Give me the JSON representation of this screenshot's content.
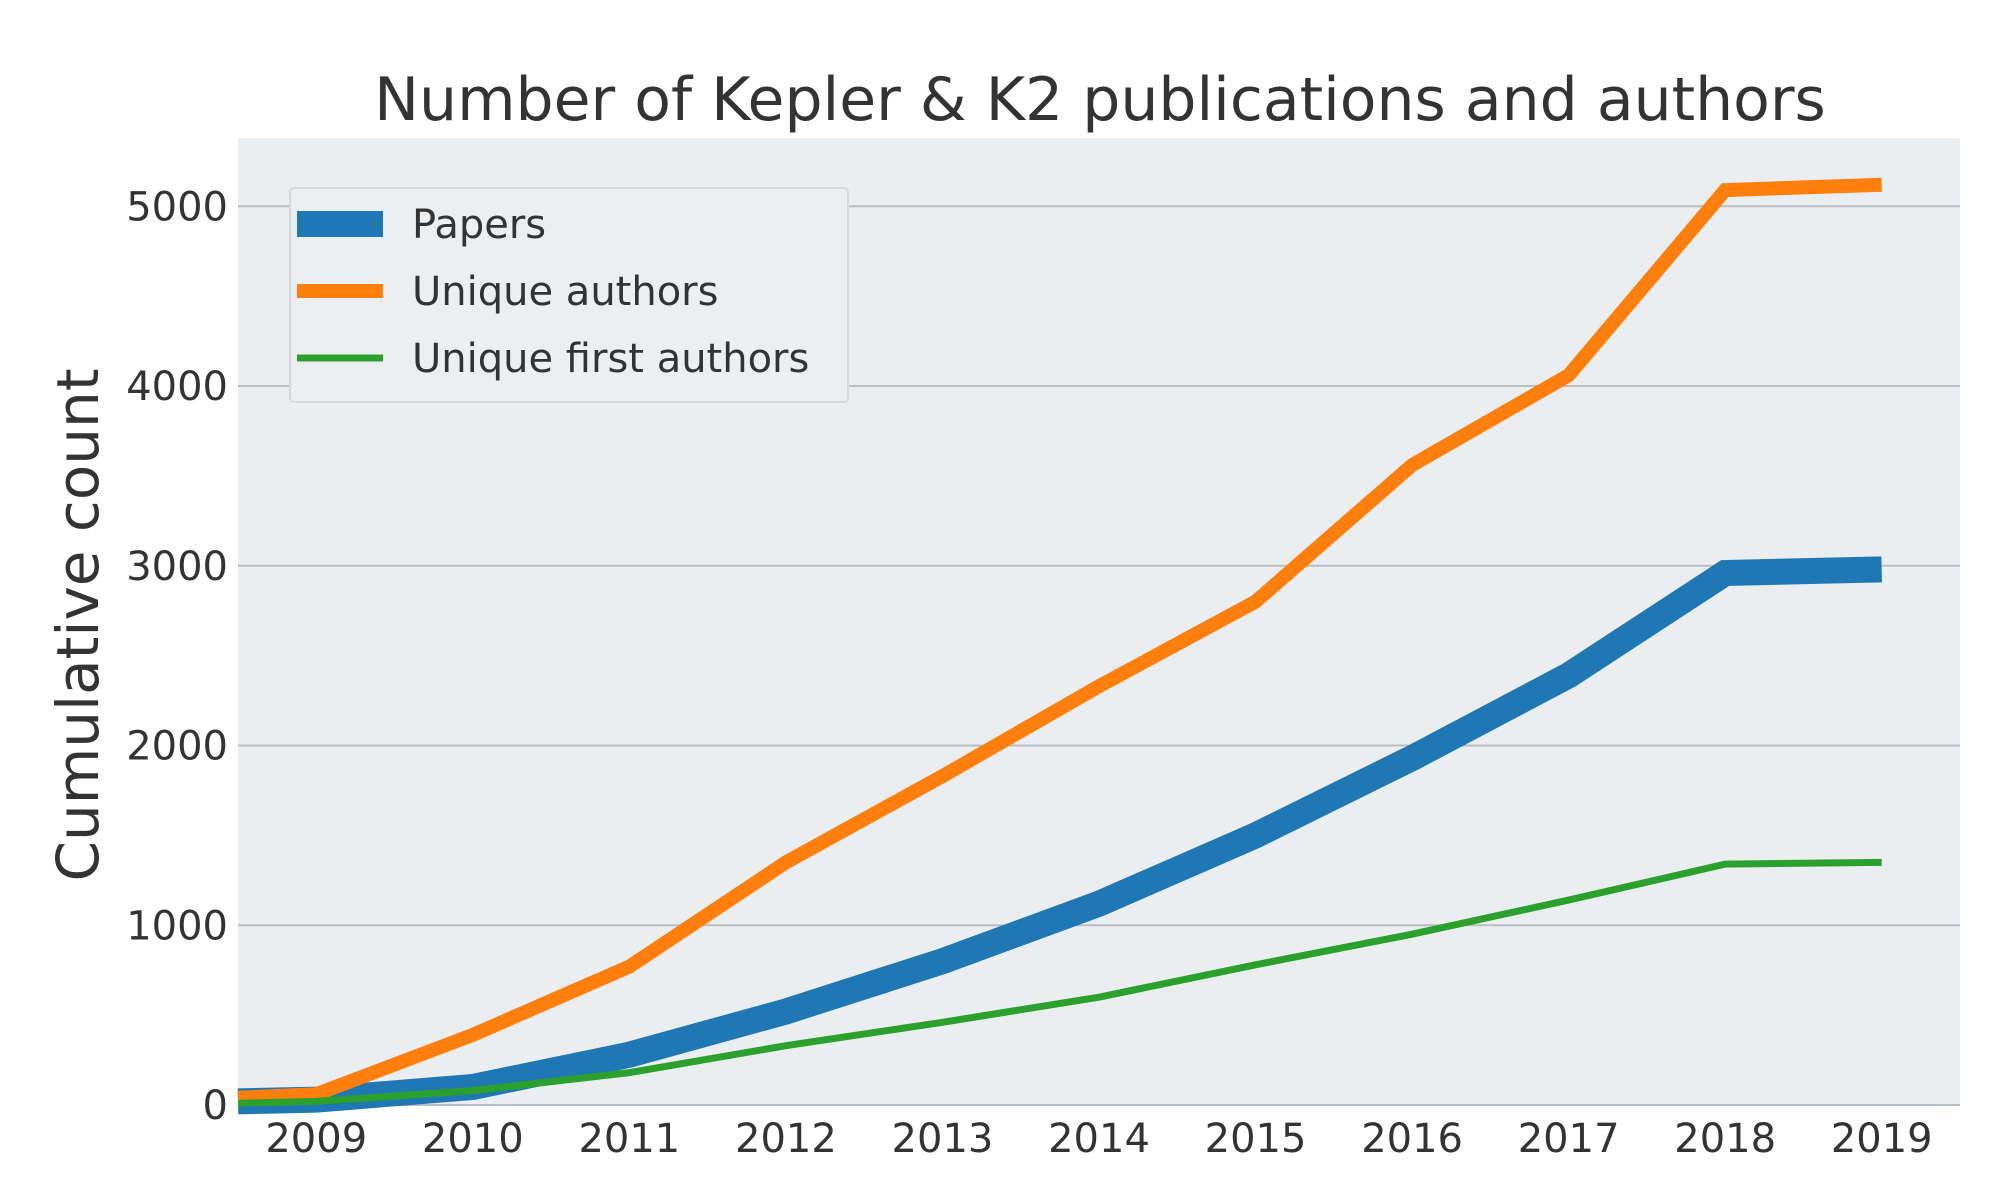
{
  "chart_data": {
    "type": "line",
    "title": "Number of Kepler & K2 publications and authors",
    "xlabel": "",
    "ylabel": "Cumulative count",
    "x": [
      2008.5,
      2009,
      2010,
      2011,
      2012,
      2013,
      2014,
      2015,
      2016,
      2017,
      2018,
      2019
    ],
    "xticks": [
      "2009",
      "2010",
      "2011",
      "2012",
      "2013",
      "2014",
      "2015",
      "2016",
      "2017",
      "2018",
      "2019"
    ],
    "yticks": [
      "0",
      "1000",
      "2000",
      "3000",
      "4000",
      "5000"
    ],
    "xlim": [
      2008.5,
      2019.5
    ],
    "ylim": [
      0,
      5380
    ],
    "grid": "horizontal",
    "legend_position": "top-left",
    "background": "#eaeef0",
    "series": [
      {
        "name": "Papers",
        "color": "#1f77b4",
        "width": 26,
        "values": [
          20,
          30,
          100,
          280,
          520,
          800,
          1120,
          1500,
          1930,
          2390,
          2960,
          2980
        ]
      },
      {
        "name": "Unique authors",
        "color": "#ff7f0e",
        "width": 14,
        "values": [
          40,
          60,
          390,
          770,
          1350,
          1830,
          2330,
          2800,
          3560,
          4060,
          5090,
          5120
        ]
      },
      {
        "name": "Unique first authors",
        "color": "#2ca02c",
        "width": 7,
        "values": [
          10,
          20,
          80,
          180,
          330,
          460,
          600,
          780,
          950,
          1140,
          1340,
          1350
        ]
      }
    ]
  }
}
